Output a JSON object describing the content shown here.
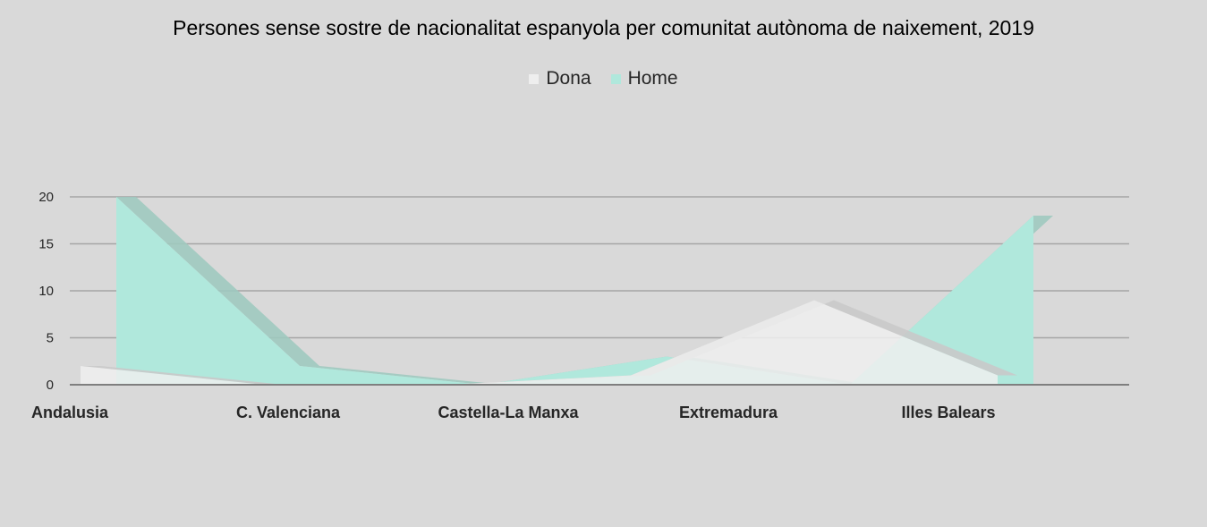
{
  "chart_data": {
    "type": "area",
    "title": "Persones sense sostre de nacionalitat espanyola per comunitat autònoma de naixement, 2019",
    "xlabel": "",
    "ylabel": "",
    "categories": [
      "Andalusia",
      "C. Valenciana",
      "Castella-La Manxa",
      "Extremadura",
      "Illes Balears",
      ""
    ],
    "series": [
      {
        "name": "Dona",
        "values": [
          2,
          0,
          0,
          1,
          9,
          1
        ],
        "color": "#eeeeee"
      },
      {
        "name": "Home",
        "values": [
          20,
          2,
          0,
          3,
          0,
          18
        ],
        "color": "#b0e8dc"
      }
    ],
    "ylim": [
      0,
      20
    ],
    "yticks": [
      0,
      5,
      10,
      15,
      20
    ],
    "grid": true,
    "legend": "top-center"
  }
}
